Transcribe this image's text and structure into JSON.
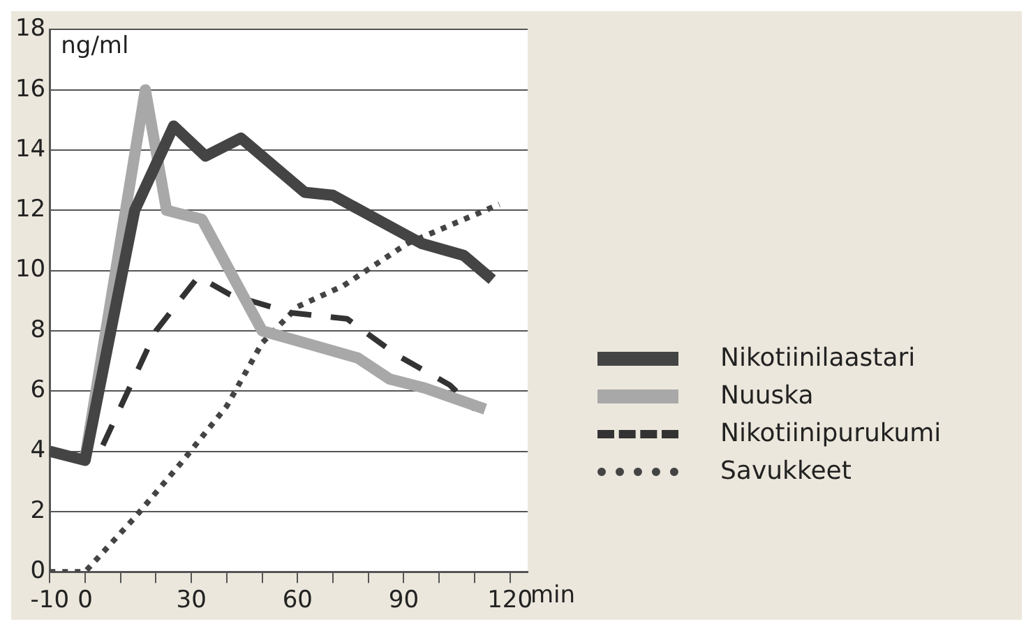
{
  "chart_data": {
    "type": "line",
    "xlabel": "min",
    "ylabel": "ng/ml",
    "xlim": [
      -10,
      125
    ],
    "xticks": [
      -10,
      0,
      {
        "value": 10,
        "label": null
      },
      {
        "value": 20,
        "label": null
      },
      30,
      {
        "value": 40,
        "label": null
      },
      {
        "value": 50,
        "label": null
      },
      60,
      {
        "value": 70,
        "label": null
      },
      {
        "value": 80,
        "label": null
      },
      90,
      {
        "value": 100,
        "label": null
      },
      {
        "value": 110,
        "label": null
      },
      120
    ],
    "ylim": [
      0,
      18
    ],
    "yticks": [
      0,
      2,
      4,
      6,
      8,
      10,
      12,
      14,
      16,
      18
    ],
    "grid": "y",
    "legend": "right",
    "marker": "none",
    "series": [
      {
        "name": "Nikotiinilaastari",
        "color": "#444444",
        "line_style": "solid",
        "x": [
          -10,
          0,
          14,
          25,
          34,
          44,
          62,
          70,
          84,
          95,
          107,
          115
        ],
        "values": [
          4,
          3.7,
          12,
          14.8,
          13.8,
          14.4,
          12.6,
          12.5,
          11.6,
          10.9,
          10.5,
          9.7
        ]
      },
      {
        "name": "Nuuska",
        "color": "#a8a8a8",
        "line_style": "solid",
        "x": [
          0,
          17,
          23,
          33,
          50,
          65,
          77,
          86,
          96,
          113
        ],
        "values": [
          3.8,
          16,
          12,
          11.7,
          8,
          7.5,
          7.1,
          6.4,
          6.1,
          5.4
        ]
      },
      {
        "name": "Nikotiinipurukumi",
        "color": "#333333",
        "line_style": "dashed",
        "x": [
          5,
          20,
          32,
          41,
          58,
          74,
          88,
          103,
          110
        ],
        "values": [
          4.2,
          8,
          9.8,
          9.2,
          8.6,
          8.4,
          7.2,
          6.2,
          5.4
        ]
      },
      {
        "name": "Savukkeet",
        "color": "#444444",
        "line_style": "dotted",
        "x": [
          -10,
          0,
          14,
          27,
          40,
          50,
          60,
          73,
          91,
          117
        ],
        "values": [
          0,
          0,
          1.8,
          3.6,
          5.5,
          7.6,
          8.8,
          9.5,
          10.9,
          12.2
        ]
      }
    ]
  }
}
